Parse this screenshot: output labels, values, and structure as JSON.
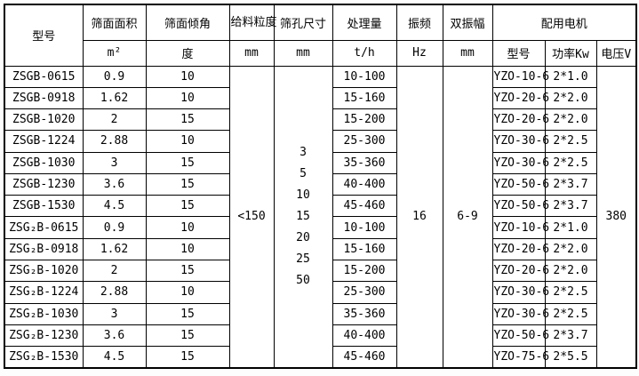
{
  "table": {
    "header": {
      "col_model": "型号",
      "col_area": "筛面面积",
      "col_incline": "筛面倾角",
      "col_feed_size": "给料粒度",
      "col_hole_size": "筛孔尺寸",
      "col_capacity": "处理量",
      "col_frequency": "振频",
      "col_amplitude": "双振幅",
      "col_motor_group": "配用电机",
      "col_motor_model": "型号",
      "col_motor_power": "功率Kw",
      "col_motor_voltage": "电压V",
      "unit_area": "m²",
      "unit_incline": "度",
      "unit_feed_size": "mm",
      "unit_hole_size": "mm",
      "unit_capacity": "t/h",
      "unit_frequency": "Hz",
      "unit_amplitude": "mm"
    },
    "merged": {
      "feed_size": "<150",
      "hole_sizes": [
        "3",
        "5",
        "10",
        "15",
        "20",
        "25",
        "50"
      ],
      "frequency": "16",
      "amplitude": "6-9",
      "voltage": "380"
    },
    "rows": [
      {
        "model": "ZSGB-0615",
        "area": "0.9",
        "incline": "10",
        "capacity": "10-100",
        "motor_model": "YZO-10-6",
        "motor_power": "2*1.0"
      },
      {
        "model": "ZSGB-0918",
        "area": "1.62",
        "incline": "10",
        "capacity": "15-160",
        "motor_model": "YZO-20-6",
        "motor_power": "2*2.0"
      },
      {
        "model": "ZSGB-1020",
        "area": "2",
        "incline": "15",
        "capacity": "15-200",
        "motor_model": "YZO-20-6",
        "motor_power": "2*2.0"
      },
      {
        "model": "ZSGB-1224",
        "area": "2.88",
        "incline": "10",
        "capacity": "25-300",
        "motor_model": "YZO-30-6",
        "motor_power": "2*2.5"
      },
      {
        "model": "ZSGB-1030",
        "area": "3",
        "incline": "15",
        "capacity": "35-360",
        "motor_model": "YZO-30-6",
        "motor_power": "2*2.5"
      },
      {
        "model": "ZSGB-1230",
        "area": "3.6",
        "incline": "15",
        "capacity": "40-400",
        "motor_model": "YZO-50-6",
        "motor_power": "2*3.7"
      },
      {
        "model": "ZSGB-1530",
        "area": "4.5",
        "incline": "15",
        "capacity": "45-460",
        "motor_model": "YZO-50-6",
        "motor_power": "2*3.7"
      },
      {
        "model": "ZSG₂B-0615",
        "area": "0.9",
        "incline": "10",
        "capacity": "10-100",
        "motor_model": "YZO-10-6",
        "motor_power": "2*1.0"
      },
      {
        "model": "ZSG₂B-0918",
        "area": "1.62",
        "incline": "10",
        "capacity": "15-160",
        "motor_model": "YZO-20-6",
        "motor_power": "2*2.0"
      },
      {
        "model": "ZSG₂B-1020",
        "area": "2",
        "incline": "15",
        "capacity": "15-200",
        "motor_model": "YZO-20-6",
        "motor_power": "2*2.0"
      },
      {
        "model": "ZSG₂B-1224",
        "area": "2.88",
        "incline": "10",
        "capacity": "25-300",
        "motor_model": "YZO-30-6",
        "motor_power": "2*2.5"
      },
      {
        "model": "ZSG₂B-1030",
        "area": "3",
        "incline": "15",
        "capacity": "35-360",
        "motor_model": "YZO-30-6",
        "motor_power": "2*2.5"
      },
      {
        "model": "ZSG₂B-1230",
        "area": "3.6",
        "incline": "15",
        "capacity": "40-400",
        "motor_model": "YZO-50-6",
        "motor_power": "2*3.7"
      },
      {
        "model": "ZSG₂B-1530",
        "area": "4.5",
        "incline": "15",
        "capacity": "45-460",
        "motor_model": "YZO-75-6",
        "motor_power": "2*5.5"
      }
    ]
  }
}
